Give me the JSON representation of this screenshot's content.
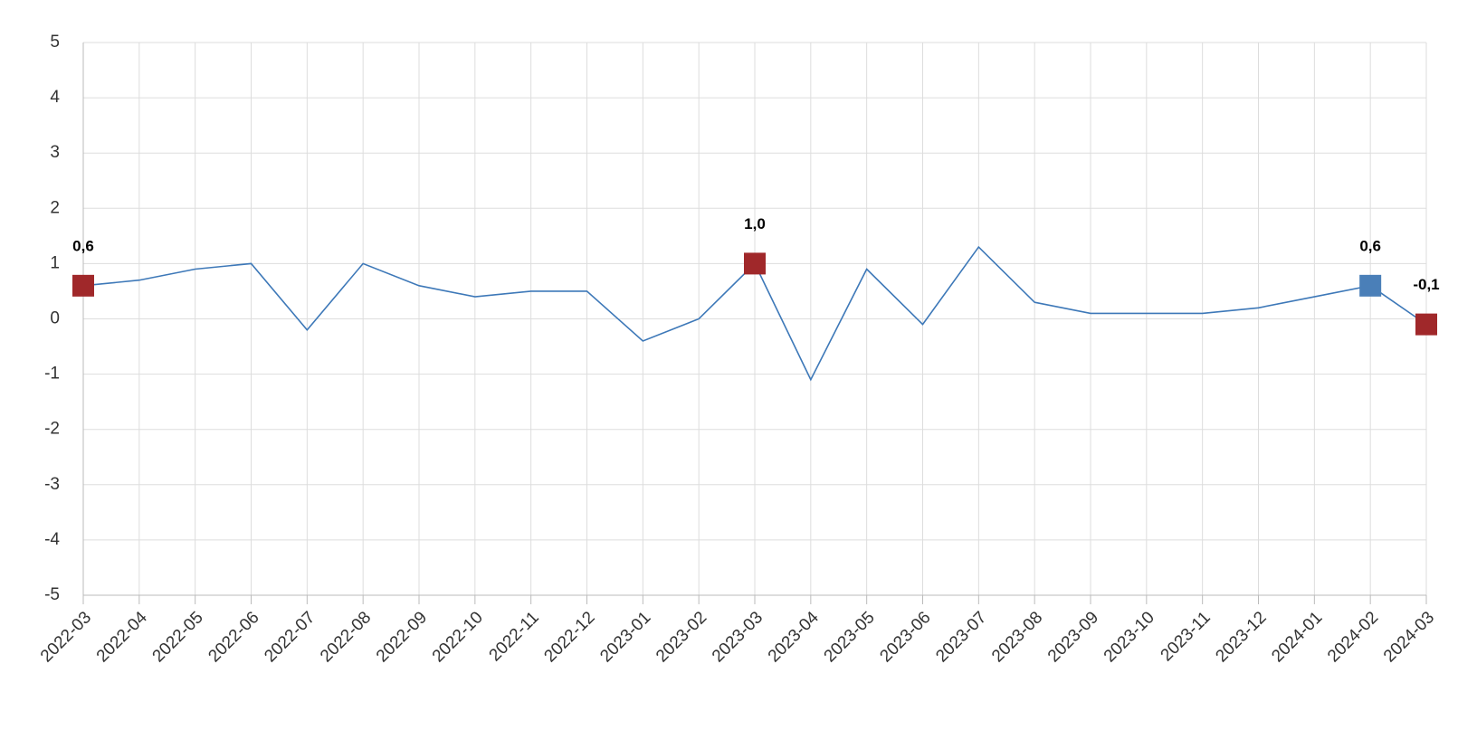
{
  "chart_data": {
    "type": "line",
    "categories": [
      "2022-03",
      "2022-04",
      "2022-05",
      "2022-06",
      "2022-07",
      "2022-08",
      "2022-09",
      "2022-10",
      "2022-11",
      "2022-12",
      "2023-01",
      "2023-02",
      "2023-03",
      "2023-04",
      "2023-05",
      "2023-06",
      "2023-07",
      "2023-08",
      "2023-09",
      "2023-10",
      "2023-11",
      "2023-12",
      "2024-01",
      "2024-02",
      "2024-03"
    ],
    "values": [
      0.6,
      0.7,
      0.9,
      1.0,
      -0.2,
      1.0,
      0.6,
      0.4,
      0.5,
      0.5,
      -0.4,
      0.0,
      1.0,
      -1.1,
      0.9,
      -0.1,
      1.3,
      0.3,
      0.1,
      0.1,
      0.1,
      0.2,
      0.4,
      0.6,
      -0.1
    ],
    "color": "#3d78b8",
    "ylim": [
      -5,
      5
    ],
    "yticks": [
      -5,
      -4,
      -3,
      -2,
      -1,
      0,
      1,
      2,
      3,
      4,
      5
    ],
    "grid": true,
    "highlights": [
      {
        "x": "2022-03",
        "value": 0.6,
        "label": "0,6",
        "color": "#a0282a"
      },
      {
        "x": "2023-03",
        "value": 1.0,
        "label": "1,0",
        "color": "#a0282a"
      },
      {
        "x": "2024-02",
        "value": 0.6,
        "label": "0,6",
        "color": "#4a7fb8"
      },
      {
        "x": "2024-03",
        "value": -0.1,
        "label": "-0,1",
        "color": "#a0282a"
      }
    ]
  }
}
